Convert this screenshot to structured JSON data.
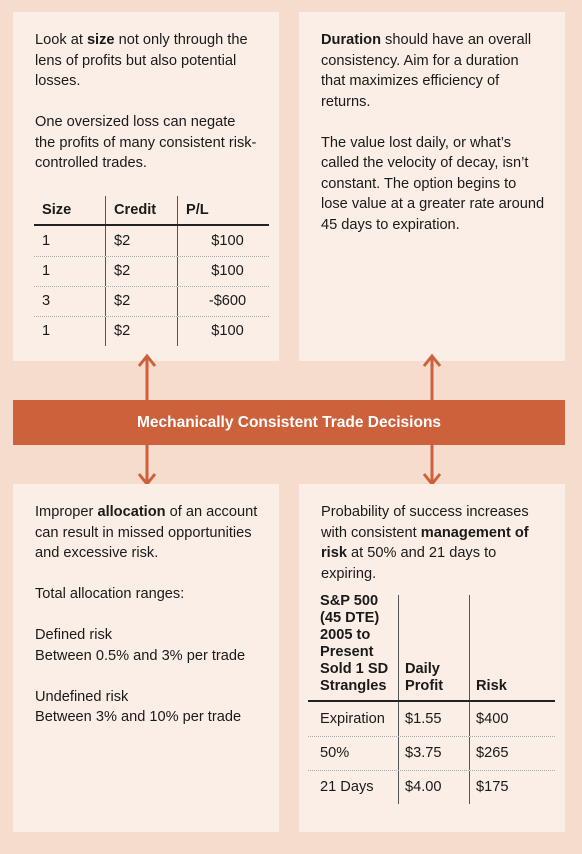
{
  "top_left": {
    "para1": {
      "pre": "Look at ",
      "bold": "size",
      "post": " not only through the lens of profits but also potential losses."
    },
    "para2": "One oversized loss can negate the profits of many consistent risk-controlled trades.",
    "table": {
      "headers": [
        "Size",
        "Credit",
        "P/L"
      ],
      "rows": [
        [
          "1",
          "$2",
          "$100"
        ],
        [
          "1",
          "$2",
          "$100"
        ],
        [
          "3",
          "$2",
          "-$600"
        ],
        [
          "1",
          "$2",
          "$100"
        ]
      ]
    }
  },
  "top_right": {
    "para1": {
      "bold": "Duration",
      "post": " should have an overall consistency. Aim for a duration that maximizes efficiency of returns."
    },
    "para2": "The value lost daily, or what’s called the velocity of decay, isn’t constant. The option begins to lose value at a greater rate around 45 days to expiration."
  },
  "banner": {
    "title": "Mechanically Consistent Trade Decisions"
  },
  "bottom_left": {
    "para1": {
      "pre": "Improper ",
      "bold": "allocation",
      "post": " of an account can result in missed opportunities and excessive risk."
    },
    "para2": "Total allocation ranges:",
    "defined_label": "Defined risk",
    "defined_value": "Between 0.5% and 3% per trade",
    "undefined_label": "Undefined risk",
    "undefined_value": "Between 3% and 10% per trade"
  },
  "bottom_right": {
    "para1": {
      "pre": "Probability of success increases with consistent ",
      "bold": "management of risk",
      "post": " at 50% and 21 days to expiring."
    },
    "table": {
      "headers": [
        "S&P 500 (45 DTE) 2005 to Present Sold 1 SD Strangles",
        "Daily Profit",
        "Risk"
      ],
      "rows": [
        [
          "Expiration",
          "$1.55",
          "$400"
        ],
        [
          "50%",
          "$3.75",
          "$265"
        ],
        [
          "21 Days",
          "$4.00",
          "$175"
        ]
      ]
    }
  },
  "colors": {
    "background": "#f6dccd",
    "panel": "#fbeee6",
    "accent": "#cc613c"
  },
  "icons": [
    "double-arrow-icon"
  ]
}
